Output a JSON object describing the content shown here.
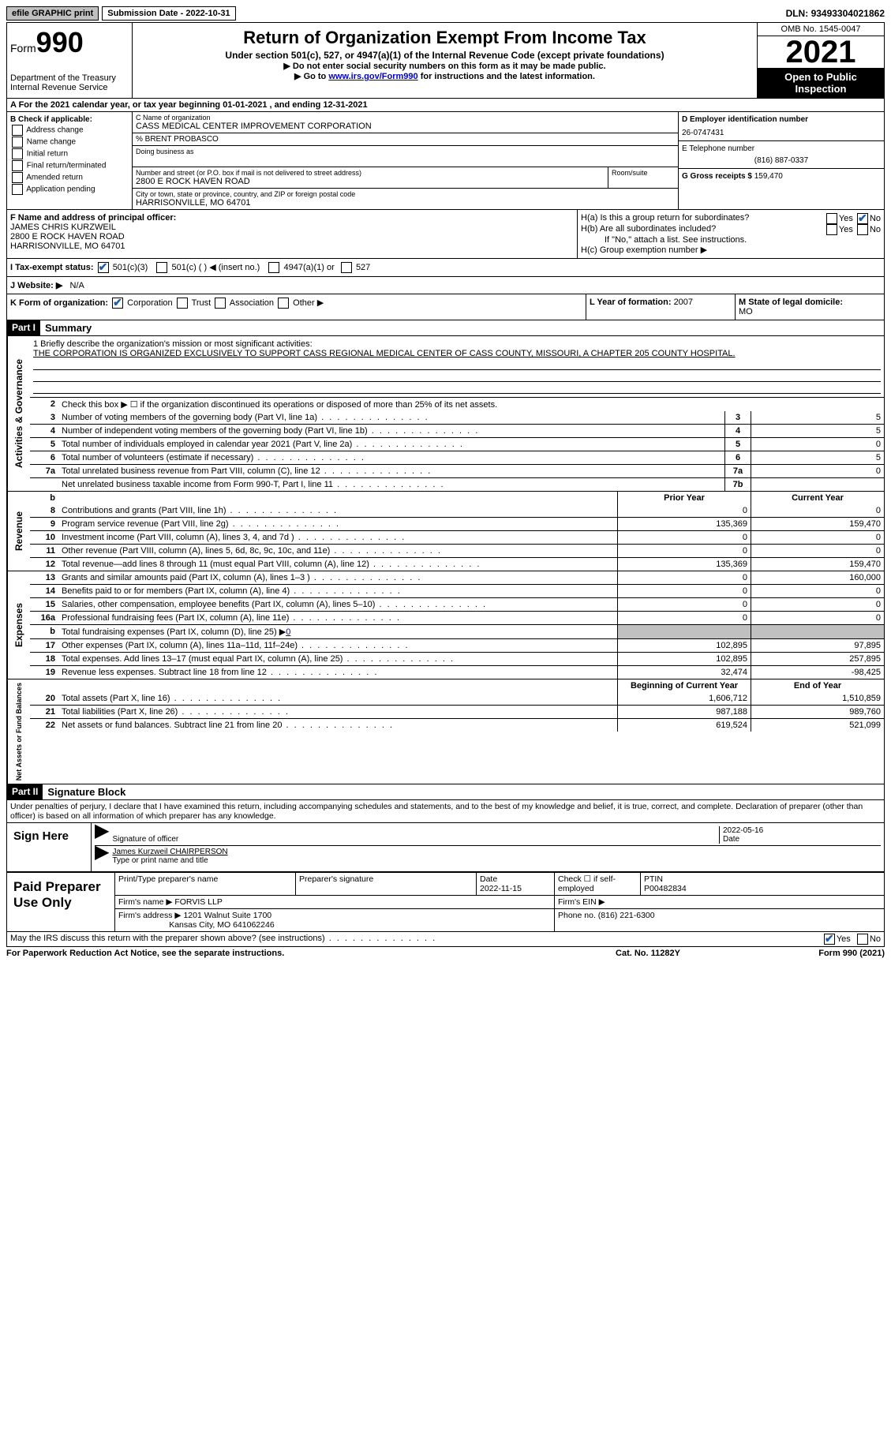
{
  "topbar": {
    "efile": "efile GRAPHIC print",
    "subdate_label": "Submission Date - ",
    "subdate": "2022-10-31",
    "dln_label": "DLN: ",
    "dln": "93493304021862"
  },
  "header": {
    "form_prefix": "Form",
    "form_num": "990",
    "dept": "Department of the Treasury",
    "irs": "Internal Revenue Service",
    "title": "Return of Organization Exempt From Income Tax",
    "sub1": "Under section 501(c), 527, or 4947(a)(1) of the Internal Revenue Code (except private foundations)",
    "sub2": "▶ Do not enter social security numbers on this form as it may be made public.",
    "sub3_a": "▶ Go to ",
    "sub3_link": "www.irs.gov/Form990",
    "sub3_b": " for instructions and the latest information.",
    "omb": "OMB No. 1545-0047",
    "year": "2021",
    "open": "Open to Public Inspection"
  },
  "rowA": {
    "text": "A For the 2021 calendar year, or tax year beginning 01-01-2021   , and ending 12-31-2021"
  },
  "B": {
    "hdr": "B Check if applicable:",
    "items": [
      "Address change",
      "Name change",
      "Initial return",
      "Final return/terminated",
      "Amended return",
      "Application pending"
    ]
  },
  "C": {
    "name_lbl": "C Name of organization",
    "name": "CASS MEDICAL CENTER IMPROVEMENT CORPORATION",
    "care_of": "% BRENT PROBASCO",
    "dba_lbl": "Doing business as",
    "addr_lbl": "Number and street (or P.O. box if mail is not delivered to street address)",
    "room_lbl": "Room/suite",
    "addr": "2800 E ROCK HAVEN ROAD",
    "city_lbl": "City or town, state or province, country, and ZIP or foreign postal code",
    "city": "HARRISONVILLE, MO  64701"
  },
  "D": {
    "lbl": "D Employer identification number",
    "val": "26-0747431"
  },
  "E": {
    "lbl": "E Telephone number",
    "val": "(816) 887-0337"
  },
  "G": {
    "lbl": "G Gross receipts $ ",
    "val": "159,470"
  },
  "F": {
    "lbl": "F  Name and address of principal officer:",
    "name": "JAMES CHRIS KURZWEIL",
    "addr1": "2800 E ROCK HAVEN ROAD",
    "addr2": "HARRISONVILLE, MO  64701"
  },
  "H": {
    "a": "H(a)  Is this a group return for subordinates?",
    "b": "H(b)  Are all subordinates included?",
    "b_note": "If \"No,\" attach a list. See instructions.",
    "c": "H(c)  Group exemption number ▶",
    "yes": "Yes",
    "no": "No"
  },
  "I": {
    "lbl": "I   Tax-exempt status:",
    "c3": "501(c)(3)",
    "c": "501(c) (  ) ◀ (insert no.)",
    "a1": "4947(a)(1) or",
    "s527": "527"
  },
  "J": {
    "lbl": "J   Website: ▶",
    "val": "N/A"
  },
  "K": {
    "lbl": "K Form of organization:",
    "corp": "Corporation",
    "trust": "Trust",
    "assoc": "Association",
    "other": "Other ▶"
  },
  "L": {
    "lbl": "L Year of formation: ",
    "val": "2007"
  },
  "M": {
    "lbl": "M State of legal domicile:",
    "val": "MO"
  },
  "part1": {
    "hdr": "Part I",
    "title": "Summary"
  },
  "mission": {
    "lbl": "1   Briefly describe the organization's mission or most significant activities:",
    "txt": "THE CORPORATION IS ORGANIZED EXCLUSIVELY TO SUPPORT CASS REGIONAL MEDICAL CENTER OF CASS COUNTY, MISSOURI, A CHAPTER 205 COUNTY HOSPITAL."
  },
  "line2": "Check this box ▶ ☐  if the organization discontinued its operations or disposed of more than 25% of its net assets.",
  "ag_rows": [
    {
      "n": "3",
      "t": "Number of voting members of the governing body (Part VI, line 1a)",
      "box": "3",
      "v": "5"
    },
    {
      "n": "4",
      "t": "Number of independent voting members of the governing body (Part VI, line 1b)",
      "box": "4",
      "v": "5"
    },
    {
      "n": "5",
      "t": "Total number of individuals employed in calendar year 2021 (Part V, line 2a)",
      "box": "5",
      "v": "0"
    },
    {
      "n": "6",
      "t": "Total number of volunteers (estimate if necessary)",
      "box": "6",
      "v": "5"
    },
    {
      "n": "7a",
      "t": "Total unrelated business revenue from Part VIII, column (C), line 12",
      "box": "7a",
      "v": "0"
    },
    {
      "n": "",
      "t": "Net unrelated business taxable income from Form 990-T, Part I, line 11",
      "box": "7b",
      "v": ""
    }
  ],
  "rev_hdr": {
    "n": "b",
    "py": "Prior Year",
    "cy": "Current Year"
  },
  "rev_rows": [
    {
      "n": "8",
      "t": "Contributions and grants (Part VIII, line 1h)",
      "py": "0",
      "cy": "0"
    },
    {
      "n": "9",
      "t": "Program service revenue (Part VIII, line 2g)",
      "py": "135,369",
      "cy": "159,470"
    },
    {
      "n": "10",
      "t": "Investment income (Part VIII, column (A), lines 3, 4, and 7d )",
      "py": "0",
      "cy": "0"
    },
    {
      "n": "11",
      "t": "Other revenue (Part VIII, column (A), lines 5, 6d, 8c, 9c, 10c, and 11e)",
      "py": "0",
      "cy": "0"
    },
    {
      "n": "12",
      "t": "Total revenue—add lines 8 through 11 (must equal Part VIII, column (A), line 12)",
      "py": "135,369",
      "cy": "159,470"
    }
  ],
  "exp_rows": [
    {
      "n": "13",
      "t": "Grants and similar amounts paid (Part IX, column (A), lines 1–3 )",
      "py": "0",
      "cy": "160,000"
    },
    {
      "n": "14",
      "t": "Benefits paid to or for members (Part IX, column (A), line 4)",
      "py": "0",
      "cy": "0"
    },
    {
      "n": "15",
      "t": "Salaries, other compensation, employee benefits (Part IX, column (A), lines 5–10)",
      "py": "0",
      "cy": "0"
    },
    {
      "n": "16a",
      "t": "Professional fundraising fees (Part IX, column (A), line 11e)",
      "py": "0",
      "cy": "0"
    },
    {
      "n": "b",
      "t": "Total fundraising expenses (Part IX, column (D), line 25) ▶",
      "py": "shade",
      "cy": "shade",
      "extra": "0"
    },
    {
      "n": "17",
      "t": "Other expenses (Part IX, column (A), lines 11a–11d, 11f–24e)",
      "py": "102,895",
      "cy": "97,895"
    },
    {
      "n": "18",
      "t": "Total expenses. Add lines 13–17 (must equal Part IX, column (A), line 25)",
      "py": "102,895",
      "cy": "257,895"
    },
    {
      "n": "19",
      "t": "Revenue less expenses. Subtract line 18 from line 12",
      "py": "32,474",
      "cy": "-98,425"
    }
  ],
  "na_hdr": {
    "py": "Beginning of Current Year",
    "cy": "End of Year"
  },
  "na_rows": [
    {
      "n": "20",
      "t": "Total assets (Part X, line 16)",
      "py": "1,606,712",
      "cy": "1,510,859"
    },
    {
      "n": "21",
      "t": "Total liabilities (Part X, line 26)",
      "py": "987,188",
      "cy": "989,760"
    },
    {
      "n": "22",
      "t": "Net assets or fund balances. Subtract line 21 from line 20",
      "py": "619,524",
      "cy": "521,099"
    }
  ],
  "vtabs": {
    "ag": "Activities & Governance",
    "rev": "Revenue",
    "exp": "Expenses",
    "na": "Net Assets or Fund Balances"
  },
  "part2": {
    "hdr": "Part II",
    "title": "Signature Block",
    "decl": "Under penalties of perjury, I declare that I have examined this return, including accompanying schedules and statements, and to the best of my knowledge and belief, it is true, correct, and complete. Declaration of preparer (other than officer) is based on all information of which preparer has any knowledge."
  },
  "sign": {
    "here": "Sign Here",
    "sig_lbl": "Signature of officer",
    "date_lbl": "Date",
    "date": "2022-05-16",
    "name": "James Kurzweil CHAIRPERSON",
    "name_lbl": "Type or print name and title"
  },
  "prep": {
    "title": "Paid Preparer Use Only",
    "pt_name_lbl": "Print/Type preparer's name",
    "sig_lbl": "Preparer's signature",
    "date_lbl": "Date",
    "date": "2022-11-15",
    "check_lbl": "Check ☐ if self-employed",
    "ptin_lbl": "PTIN",
    "ptin": "P00482834",
    "firm_name_lbl": "Firm's name      ▶ ",
    "firm_name": "FORVIS LLP",
    "firm_ein_lbl": "Firm's EIN ▶",
    "firm_addr_lbl": "Firm's address ▶ ",
    "firm_addr1": "1201 Walnut Suite 1700",
    "firm_addr2": "Kansas City, MO  641062246",
    "phone_lbl": "Phone no. ",
    "phone": "(816) 221-6300"
  },
  "discuss": {
    "txt": "May the IRS discuss this return with the preparer shown above? (see instructions)",
    "yes": "Yes",
    "no": "No"
  },
  "footer": {
    "left": "For Paperwork Reduction Act Notice, see the separate instructions.",
    "mid": "Cat. No. 11282Y",
    "right": "Form 990 (2021)"
  }
}
